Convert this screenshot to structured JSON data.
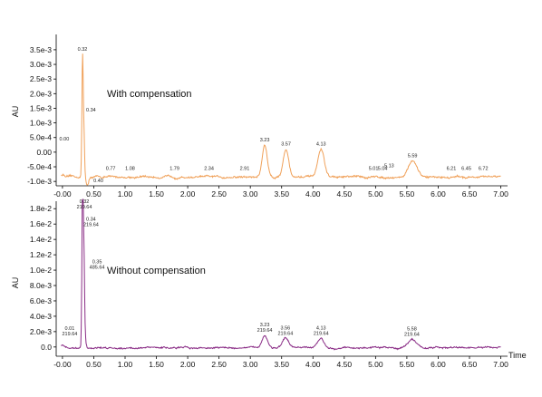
{
  "chart_data": [
    {
      "type": "line",
      "annotation": "With compensation",
      "ylabel": "AU",
      "xlabel": "",
      "xlim": [
        -0.1,
        7.05
      ],
      "ylim": [
        -0.00115,
        0.0039
      ],
      "x_ticks": [
        "-0.00",
        "0.50",
        "1.00",
        "1.50",
        "2.00",
        "2.50",
        "3.00",
        "3.50",
        "4.00",
        "4.50",
        "5.00",
        "5.50",
        "6.00",
        "6.50",
        "7.00"
      ],
      "y_ticks": [
        "3.5e-3",
        "3.0e-3",
        "2.5e-3",
        "2.0e-3",
        "1.5e-3",
        "1.0e-3",
        "5.0e-4",
        "0.00",
        "-5.0e-4",
        "-1.0e-3"
      ],
      "color": "#f0a15a",
      "baseline": -0.00085,
      "noise": 4e-05,
      "peaks": [
        {
          "x": 0.32,
          "h": 0.0038,
          "w": 0.01,
          "label": "0.32"
        },
        {
          "x": 0.34,
          "h": 0.0016,
          "w": 0.012,
          "label": "0.34"
        },
        {
          "x": 0.4,
          "h": -0.0003,
          "w": 0.02,
          "label": "0.40"
        },
        {
          "x": 3.23,
          "h": 0.0011,
          "w": 0.04,
          "label": "3.23"
        },
        {
          "x": 3.57,
          "h": 0.00095,
          "w": 0.045,
          "label": "3.57"
        },
        {
          "x": 4.13,
          "h": 0.00095,
          "w": 0.05,
          "label": "4.13"
        },
        {
          "x": 5.59,
          "h": 0.00055,
          "w": 0.065,
          "label": "5.59"
        }
      ],
      "minor_labels": [
        {
          "x": 0.0,
          "label": "0.00"
        },
        {
          "x": 0.77,
          "label": "0.77"
        },
        {
          "x": 1.08,
          "label": "1.08"
        },
        {
          "x": 1.79,
          "label": "1.79"
        },
        {
          "x": 2.34,
          "label": "2.34"
        },
        {
          "x": 2.91,
          "label": "2.91"
        },
        {
          "x": 5.01,
          "label": "5.01"
        },
        {
          "x": 5.04,
          "label": "5.04"
        },
        {
          "x": 5.13,
          "label": "5.13"
        },
        {
          "x": 6.21,
          "label": "6.21"
        },
        {
          "x": 6.45,
          "label": "6.45"
        },
        {
          "x": 6.72,
          "label": "6.72"
        }
      ]
    },
    {
      "type": "line",
      "annotation": "Without compensation",
      "ylabel": "AU",
      "xlabel": "Time",
      "xlim": [
        -0.1,
        7.05
      ],
      "ylim": [
        -0.0012,
        0.0185
      ],
      "x_ticks": [
        "-0.00",
        "0.50",
        "1.00",
        "1.50",
        "2.00",
        "2.50",
        "3.00",
        "3.50",
        "4.00",
        "4.50",
        "5.00",
        "5.50",
        "6.00",
        "6.50",
        "7.00"
      ],
      "y_ticks": [
        "1.8e-2",
        "1.6e-2",
        "1.4e-2",
        "1.2e-2",
        "1.0e-2",
        "8.0e-3",
        "6.0e-3",
        "4.0e-3",
        "2.0e-3",
        "0.0"
      ],
      "color": "#8a2d86",
      "baseline": -0.0001,
      "noise": 0.00012,
      "peaks": [
        {
          "x": 0.32,
          "h": 0.0185,
          "w": 0.01,
          "label": "0.32",
          "sublabel": "219.64"
        },
        {
          "x": 0.34,
          "h": 0.0115,
          "w": 0.012,
          "label": "0.34",
          "sublabel": "219.64"
        },
        {
          "x": 0.35,
          "h": 0.0015,
          "w": 0.02,
          "label": "0.35",
          "sublabel": "485.64"
        },
        {
          "x": 3.23,
          "h": 0.0016,
          "w": 0.045,
          "label": "3.23",
          "sublabel": "219.64"
        },
        {
          "x": 3.56,
          "h": 0.0012,
          "w": 0.045,
          "label": "3.56",
          "sublabel": "219.64"
        },
        {
          "x": 4.13,
          "h": 0.0012,
          "w": 0.05,
          "label": "4.13",
          "sublabel": "219.64"
        },
        {
          "x": 5.58,
          "h": 0.0011,
          "w": 0.065,
          "label": "5.58",
          "sublabel": "219.64"
        }
      ],
      "minor_labels": [
        {
          "x": 0.01,
          "label": "0.01",
          "sublabel": "219.64"
        }
      ]
    }
  ]
}
